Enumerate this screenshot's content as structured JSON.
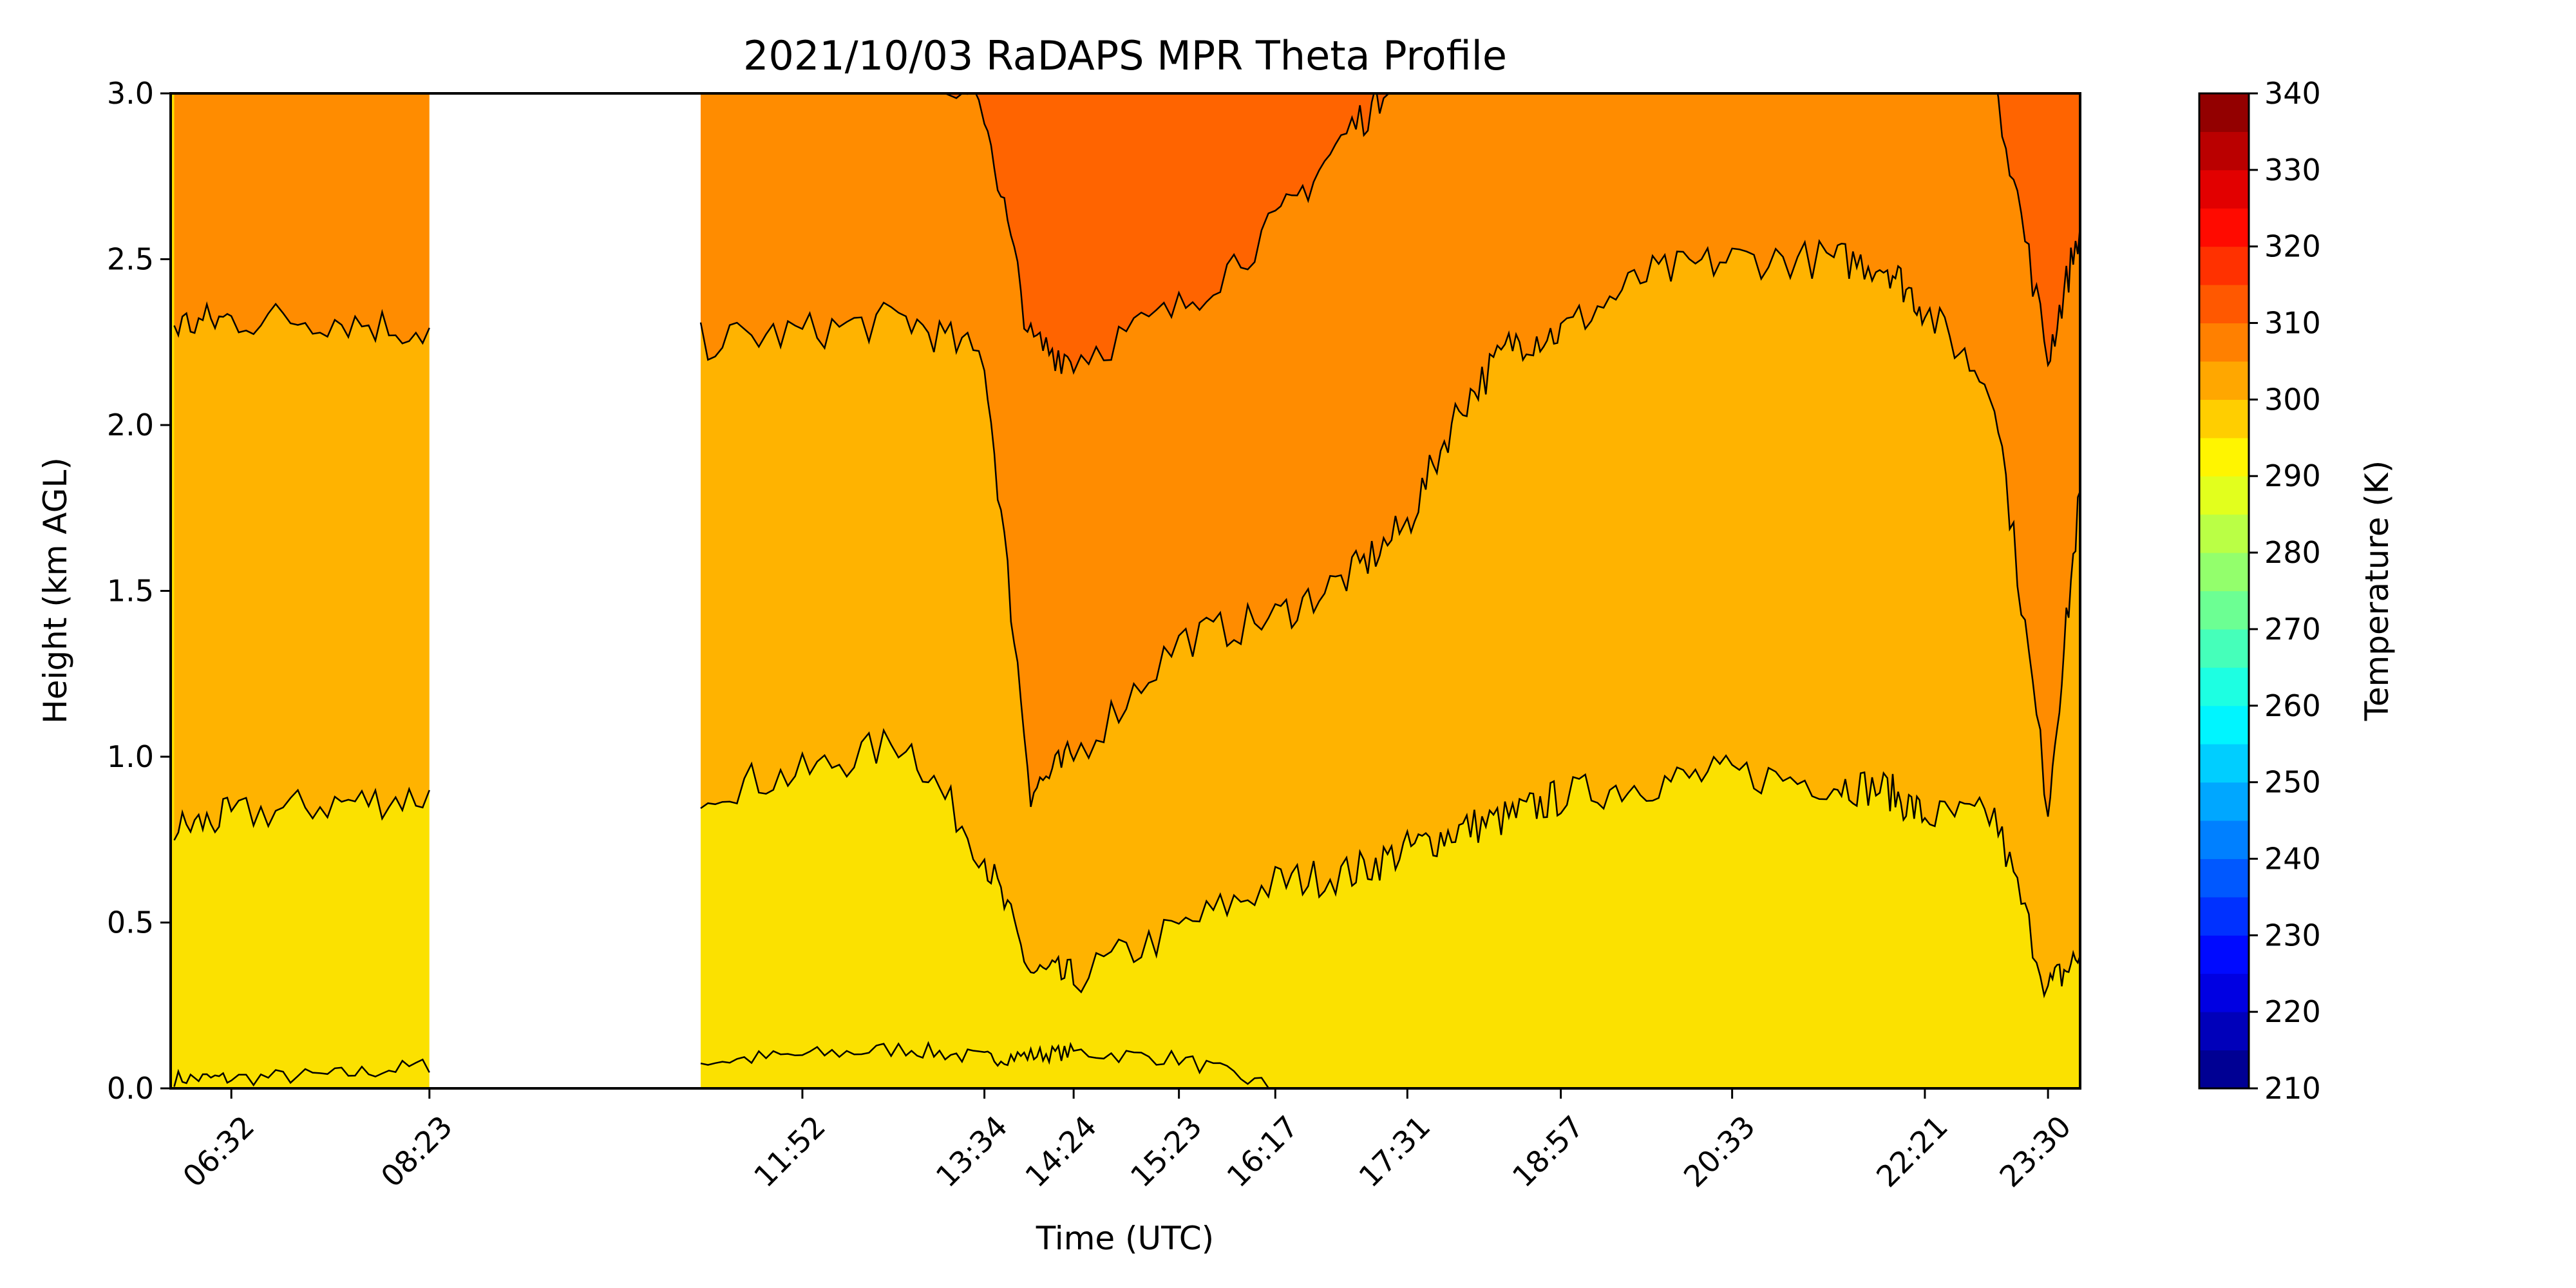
{
  "chart_data": {
    "type": "heatmap",
    "title": "2021/10/03 RaDAPS MPR Theta Profile",
    "xlabel": "Time (UTC)",
    "ylabel": "Height (km AGL)",
    "colorbar_label": "Temperature (K)",
    "ylim": [
      0.0,
      3.0
    ],
    "y_ticks": [
      0.0,
      0.5,
      1.0,
      1.5,
      2.0,
      2.5,
      3.0
    ],
    "y_tick_labels": [
      "0.0",
      "0.5",
      "1.0",
      "1.5",
      "2.0",
      "2.5",
      "3.0"
    ],
    "xlim": [
      "05:58",
      "23:48"
    ],
    "x_ticks": [
      "06:32",
      "08:23",
      "11:52",
      "13:34",
      "14:24",
      "15:23",
      "16:17",
      "17:31",
      "18:57",
      "20:33",
      "22:21",
      "23:30"
    ],
    "colorbar_range": [
      210,
      340
    ],
    "colorbar_ticks": [
      210,
      220,
      230,
      240,
      250,
      260,
      270,
      280,
      290,
      300,
      310,
      320,
      330,
      340
    ],
    "colorbar_tick_labels": [
      "210",
      "220",
      "230",
      "240",
      "250",
      "260",
      "270",
      "280",
      "290",
      "300",
      "310",
      "320",
      "330",
      "340"
    ],
    "colorbar_step": 5,
    "colormap": "jet",
    "data_gap": [
      "08:23",
      "10:55"
    ],
    "contour_levels": [
      {
        "level": 295,
        "color": "#fbe100",
        "heights": [
          0.03,
          0.03,
          0.04,
          0.07,
          0.08,
          0.1,
          0.12,
          0.09,
          0.1,
          0.11,
          0.09,
          0.0,
          0.0,
          0.0,
          0.0,
          0.0,
          0.0,
          0.0,
          0.0,
          0.0,
          0.0,
          0.0,
          0.0,
          0.0,
          0.0
        ]
      },
      {
        "level": 300,
        "color": "#ffb300",
        "heights": [
          0.78,
          0.82,
          0.86,
          0.88,
          0.9,
          0.95,
          1.05,
          0.7,
          0.35,
          0.33,
          0.48,
          0.62,
          0.65,
          0.72,
          0.78,
          0.82,
          0.88,
          0.92,
          0.95,
          0.92,
          0.9,
          0.82,
          0.82,
          0.3,
          0.4
        ]
      },
      {
        "level": 305,
        "color": "#ff8c00",
        "heights": [
          2.3,
          2.32,
          2.32,
          2.28,
          2.25,
          2.28,
          2.32,
          2.2,
          0.9,
          1.0,
          1.35,
          1.42,
          1.55,
          1.7,
          2.05,
          2.25,
          2.28,
          2.45,
          2.5,
          2.5,
          2.48,
          2.35,
          2.1,
          0.85,
          1.8
        ]
      },
      {
        "level": 310,
        "color": "#ff6400",
        "heights": [
          3.05,
          3.05,
          3.05,
          3.05,
          3.05,
          3.05,
          3.05,
          2.95,
          2.25,
          2.2,
          2.35,
          2.6,
          2.9,
          3.05,
          3.05,
          3.05,
          3.05,
          3.05,
          3.05,
          3.05,
          3.05,
          3.05,
          3.05,
          2.2,
          2.6
        ]
      }
    ],
    "profile_times": [
      "06:00",
      "06:32",
      "07:30",
      "08:23",
      "10:55",
      "11:52",
      "12:50",
      "13:34",
      "14:00",
      "14:24",
      "15:23",
      "16:17",
      "17:00",
      "17:31",
      "18:00",
      "18:30",
      "18:57",
      "19:45",
      "20:33",
      "21:30",
      "22:00",
      "22:21",
      "23:00",
      "23:30",
      "23:48"
    ]
  }
}
